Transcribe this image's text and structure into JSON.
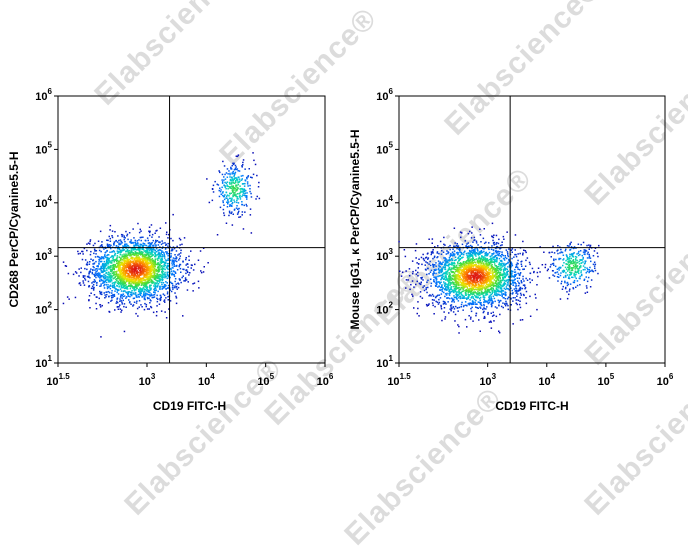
{
  "watermark": "Elabscience®",
  "chart_data": [
    {
      "type": "scatter",
      "xlabel": "CD19 FITC-H",
      "ylabel": "CD268 PerCP/Cyanine5.5-H",
      "x_scale": "log",
      "y_scale": "log",
      "xlim": [
        31.62,
        1000000
      ],
      "ylim": [
        10,
        1000000
      ],
      "x_ticks": [
        {
          "base": "10",
          "exp": "1.5",
          "value": 31.62
        },
        {
          "base": "10",
          "exp": "3",
          "value": 1000
        },
        {
          "base": "10",
          "exp": "4",
          "value": 10000
        },
        {
          "base": "10",
          "exp": "5",
          "value": 100000
        },
        {
          "base": "10",
          "exp": "6",
          "value": 1000000
        }
      ],
      "y_ticks": [
        {
          "base": "10",
          "exp": "1",
          "value": 10
        },
        {
          "base": "10",
          "exp": "2",
          "value": 100
        },
        {
          "base": "10",
          "exp": "3",
          "value": 1000
        },
        {
          "base": "10",
          "exp": "4",
          "value": 10000
        },
        {
          "base": "10",
          "exp": "5",
          "value": 100000
        },
        {
          "base": "10",
          "exp": "6",
          "value": 1000000
        }
      ],
      "quadrant_gates": {
        "x": 2400,
        "y": 1450
      },
      "populations": [
        {
          "center": [
            650,
            560
          ],
          "spread_log": [
            0.38,
            0.3
          ],
          "count": 2600
        },
        {
          "center": [
            30000,
            18000
          ],
          "spread_log": [
            0.17,
            0.24
          ],
          "count": 320
        }
      ],
      "grid": false,
      "color_scale": "density"
    },
    {
      "type": "scatter",
      "xlabel": "CD19 FITC-H",
      "ylabel": "Mouse IgG1, κ PerCP/Cyanine5.5-H",
      "x_scale": "log",
      "y_scale": "log",
      "xlim": [
        31.62,
        1000000
      ],
      "ylim": [
        10,
        1000000
      ],
      "x_ticks": [
        {
          "base": "10",
          "exp": "1.5",
          "value": 31.62
        },
        {
          "base": "10",
          "exp": "3",
          "value": 1000
        },
        {
          "base": "10",
          "exp": "4",
          "value": 10000
        },
        {
          "base": "10",
          "exp": "5",
          "value": 100000
        },
        {
          "base": "10",
          "exp": "6",
          "value": 1000000
        }
      ],
      "y_ticks": [
        {
          "base": "10",
          "exp": "1",
          "value": 10
        },
        {
          "base": "10",
          "exp": "2",
          "value": 100
        },
        {
          "base": "10",
          "exp": "3",
          "value": 1000
        },
        {
          "base": "10",
          "exp": "4",
          "value": 10000
        },
        {
          "base": "10",
          "exp": "5",
          "value": 100000
        },
        {
          "base": "10",
          "exp": "6",
          "value": 1000000
        }
      ],
      "quadrant_gates": {
        "x": 2400,
        "y": 1450
      },
      "populations": [
        {
          "center": [
            620,
            420
          ],
          "spread_log": [
            0.4,
            0.3
          ],
          "count": 2600
        },
        {
          "center": [
            28000,
            650
          ],
          "spread_log": [
            0.2,
            0.22
          ],
          "count": 330
        }
      ],
      "grid": false,
      "color_scale": "density"
    }
  ]
}
